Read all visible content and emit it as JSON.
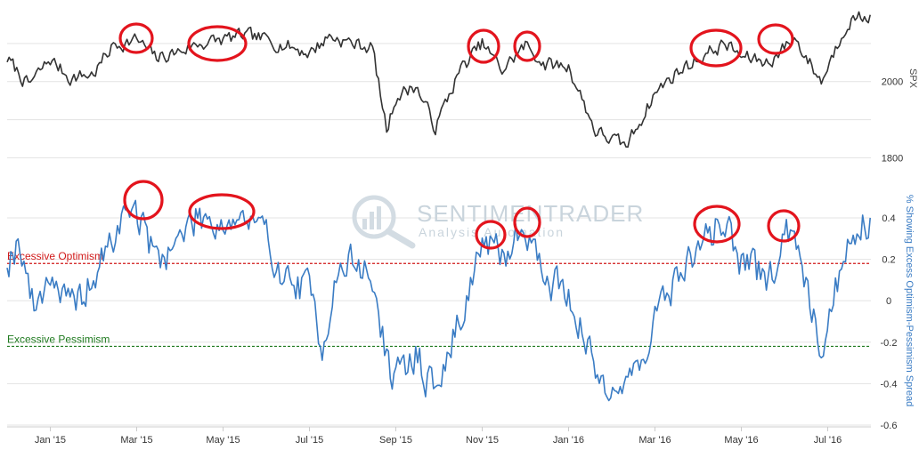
{
  "watermark": {
    "name": "SENTIMENTRADER",
    "tagline": "Analysis Automation"
  },
  "colors": {
    "spx_line": "#333333",
    "spread_line": "#3a7cc4",
    "optimism": "#d11a1a",
    "pessimism": "#1f7a1f",
    "highlight_circle": "#e3141d"
  },
  "x_axis": {
    "start_month": "2014-12",
    "end_month": "2016-07",
    "ticks": [
      {
        "date": "2015-01",
        "label": "Jan '15"
      },
      {
        "date": "2015-03",
        "label": "Mar '15"
      },
      {
        "date": "2015-05",
        "label": "May '15"
      },
      {
        "date": "2015-07",
        "label": "Jul '15"
      },
      {
        "date": "2015-09",
        "label": "Sep '15"
      },
      {
        "date": "2015-11",
        "label": "Nov '15"
      },
      {
        "date": "2016-01",
        "label": "Jan '16"
      },
      {
        "date": "2016-03",
        "label": "Mar '16"
      },
      {
        "date": "2016-05",
        "label": "May '16"
      },
      {
        "date": "2016-07",
        "label": "Jul '16"
      }
    ]
  },
  "chart_data": [
    {
      "type": "line",
      "ylabel": "SPX",
      "ylim": [
        1780,
        2200
      ],
      "yticks": [
        {
          "value": 1800,
          "label": "1800"
        },
        {
          "value": 2000,
          "label": "2000"
        }
      ],
      "series": [
        {
          "values": [
            [
              "2014-12-01",
              2060
            ],
            [
              "2014-12-16",
              1990
            ],
            [
              "2015-01-01",
              2058
            ],
            [
              "2015-01-15",
              2010
            ],
            [
              "2015-02-01",
              2020
            ],
            [
              "2015-02-15",
              2095
            ],
            [
              "2015-03-01",
              2110
            ],
            [
              "2015-03-15",
              2060
            ],
            [
              "2015-04-01",
              2080
            ],
            [
              "2015-04-15",
              2100
            ],
            [
              "2015-05-01",
              2110
            ],
            [
              "2015-05-15",
              2120
            ],
            [
              "2015-06-01",
              2110
            ],
            [
              "2015-06-15",
              2095
            ],
            [
              "2015-07-01",
              2075
            ],
            [
              "2015-07-15",
              2120
            ],
            [
              "2015-08-01",
              2100
            ],
            [
              "2015-08-15",
              2090
            ],
            [
              "2015-08-25",
              1870
            ],
            [
              "2015-09-01",
              1960
            ],
            [
              "2015-09-15",
              1990
            ],
            [
              "2015-09-29",
              1880
            ],
            [
              "2015-10-15",
              2025
            ],
            [
              "2015-11-01",
              2100
            ],
            [
              "2015-11-15",
              2030
            ],
            [
              "2015-12-01",
              2095
            ],
            [
              "2015-12-15",
              2045
            ],
            [
              "2016-01-01",
              2040
            ],
            [
              "2016-01-20",
              1870
            ],
            [
              "2016-02-11",
              1829
            ],
            [
              "2016-03-01",
              1970
            ],
            [
              "2016-03-15",
              2020
            ],
            [
              "2016-04-01",
              2060
            ],
            [
              "2016-04-20",
              2100
            ],
            [
              "2016-05-01",
              2065
            ],
            [
              "2016-05-20",
              2050
            ],
            [
              "2016-06-08",
              2115
            ],
            [
              "2016-06-27",
              2000
            ],
            [
              "2016-07-15",
              2160
            ],
            [
              "2016-07-31",
              2175
            ]
          ]
        }
      ]
    },
    {
      "type": "line",
      "ylabel": "% Showing Excess Optimism-Pessimism Spread",
      "ylim": [
        -0.6,
        0.55
      ],
      "yticks": [
        {
          "value": 0.4,
          "label": "0.4"
        },
        {
          "value": 0.2,
          "label": "0.2"
        },
        {
          "value": 0,
          "label": "0"
        },
        {
          "value": -0.2,
          "label": "-0.2"
        },
        {
          "value": -0.4,
          "label": "-0.4"
        },
        {
          "value": -0.6,
          "label": "-0.6"
        }
      ],
      "reference_lines": [
        {
          "label": "Excessive Optimism",
          "value": 0.18
        },
        {
          "label": "Excessive Pessimism",
          "value": -0.22
        }
      ],
      "series": [
        {
          "values": [
            [
              "2014-12-01",
              0.2
            ],
            [
              "2014-12-10",
              0.3
            ],
            [
              "2014-12-20",
              -0.05
            ],
            [
              "2015-01-01",
              0.15
            ],
            [
              "2015-01-15",
              -0.05
            ],
            [
              "2015-02-01",
              0.1
            ],
            [
              "2015-02-15",
              0.3
            ],
            [
              "2015-02-28",
              0.48
            ],
            [
              "2015-03-15",
              0.2
            ],
            [
              "2015-04-01",
              0.3
            ],
            [
              "2015-04-15",
              0.42
            ],
            [
              "2015-05-01",
              0.38
            ],
            [
              "2015-05-15",
              0.4
            ],
            [
              "2015-06-01",
              0.3
            ],
            [
              "2015-06-15",
              0.1
            ],
            [
              "2015-07-01",
              0.05
            ],
            [
              "2015-07-10",
              -0.2
            ],
            [
              "2015-07-20",
              0.1
            ],
            [
              "2015-08-01",
              0.2
            ],
            [
              "2015-08-15",
              0.1
            ],
            [
              "2015-08-25",
              -0.28
            ],
            [
              "2015-09-01",
              -0.4
            ],
            [
              "2015-09-15",
              -0.25
            ],
            [
              "2015-09-29",
              -0.45
            ],
            [
              "2015-10-15",
              -0.1
            ],
            [
              "2015-11-01",
              0.28
            ],
            [
              "2015-11-15",
              0.2
            ],
            [
              "2015-12-01",
              0.38
            ],
            [
              "2015-12-15",
              0.1
            ],
            [
              "2016-01-01",
              0.05
            ],
            [
              "2016-01-20",
              -0.35
            ],
            [
              "2016-02-11",
              -0.43
            ],
            [
              "2016-03-01",
              -0.1
            ],
            [
              "2016-03-15",
              0.1
            ],
            [
              "2016-04-01",
              0.25
            ],
            [
              "2016-04-20",
              0.4
            ],
            [
              "2016-05-01",
              0.18
            ],
            [
              "2016-05-20",
              0.1
            ],
            [
              "2016-06-08",
              0.38
            ],
            [
              "2016-06-27",
              -0.23
            ],
            [
              "2016-07-15",
              0.3
            ],
            [
              "2016-07-31",
              0.4
            ]
          ]
        }
      ]
    }
  ]
}
